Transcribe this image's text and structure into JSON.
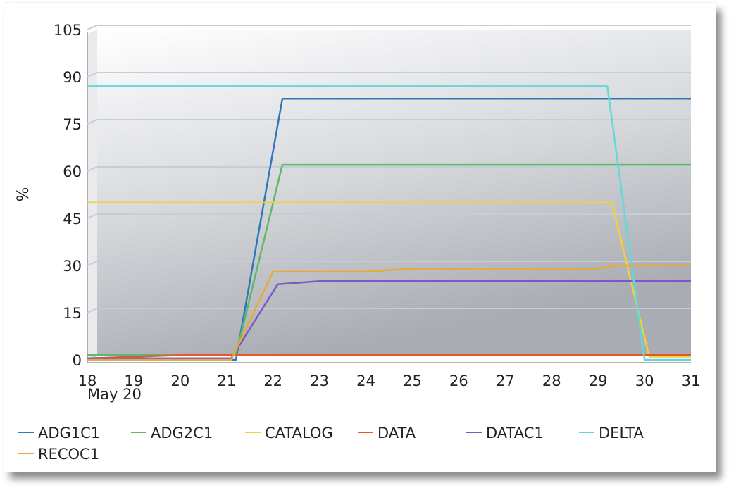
{
  "chart_data": {
    "type": "line",
    "title": "",
    "xlabel": "",
    "ylabel": "%",
    "ylim": [
      0,
      105
    ],
    "yticks": [
      0,
      15,
      30,
      45,
      60,
      75,
      90,
      105
    ],
    "xticks": [
      "18",
      "19",
      "20",
      "21",
      "22",
      "23",
      "24",
      "25",
      "26",
      "27",
      "28",
      "29",
      "30",
      "31"
    ],
    "x_sublabel": "May 20",
    "grid": true,
    "legend_position": "bottom",
    "series": [
      {
        "name": "ADG1C1",
        "color": "#2f77b8",
        "points": [
          [
            18,
            0
          ],
          [
            21,
            0
          ],
          [
            21.2,
            0
          ],
          [
            22.2,
            83
          ],
          [
            31,
            83
          ]
        ]
      },
      {
        "name": "ADG2C1",
        "color": "#5cb86b",
        "points": [
          [
            18,
            1.5
          ],
          [
            21.2,
            1.5
          ],
          [
            22.2,
            62
          ],
          [
            31,
            62
          ]
        ]
      },
      {
        "name": "CATALOG",
        "color": "#f2d13d",
        "points": [
          [
            18,
            50
          ],
          [
            29.3,
            50
          ],
          [
            30.1,
            1
          ],
          [
            31,
            1
          ]
        ]
      },
      {
        "name": "DATA",
        "color": "#e8562e",
        "points": [
          [
            18,
            0.5
          ],
          [
            20,
            1.5
          ],
          [
            31,
            1.5
          ]
        ]
      },
      {
        "name": "DATAC1",
        "color": "#7b58c6",
        "points": [
          [
            18,
            0.5
          ],
          [
            21.1,
            0.5
          ],
          [
            22.1,
            24
          ],
          [
            23,
            25
          ],
          [
            31,
            25
          ]
        ]
      },
      {
        "name": "DELTA",
        "color": "#62d8d8",
        "points": [
          [
            18,
            87
          ],
          [
            29.2,
            87
          ],
          [
            30,
            0
          ],
          [
            31,
            0
          ]
        ]
      },
      {
        "name": "RECOC1",
        "color": "#e8a83a",
        "points": [
          [
            18,
            0
          ],
          [
            21.1,
            0
          ],
          [
            22,
            28
          ],
          [
            24,
            28
          ],
          [
            25,
            29
          ],
          [
            29,
            29
          ],
          [
            29.4,
            30
          ],
          [
            31,
            30
          ]
        ]
      }
    ]
  }
}
